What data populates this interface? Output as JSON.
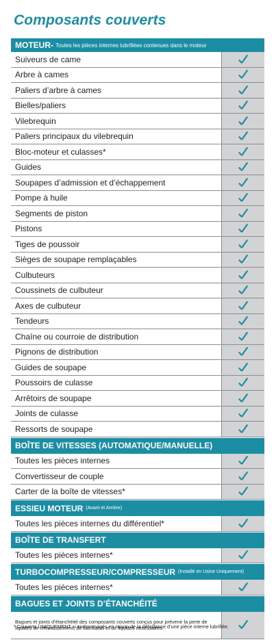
{
  "title": "Composants couverts",
  "sections": {
    "moteur": {
      "title": "MOTEUR-",
      "subtitle": "Toutes les pièces internes lubrifiées contenues dans le moteur",
      "items": [
        "Suiveurs de came",
        "Arbre à cames",
        "Paliers d’arbre à cames",
        "Bielles/paliers",
        "Vilebrequin",
        "Paliers principaux du vilebrequin",
        "Bloc-moteur et culasses*",
        "Guides",
        "Soupapes d’admission et d’échappement",
        "Pompe à huile",
        "Segments de piston",
        "Pistons",
        "Tiges de poussoir",
        "Sièges de soupape remplaçables",
        "Culbuteurs",
        "Coussinets de culbuteur",
        "Axes de culbuteur",
        "Tendeurs",
        "Chaîne ou courroie de distribution",
        "Pignons de distribution",
        "Guides de soupape",
        "Poussoirs de culasse",
        "Arrêtoirs de soupape",
        "Joints de culasse",
        "Ressorts de soupape"
      ]
    },
    "boite_vitesses": {
      "title": "BOÎTE DE VITESSES (AUTOMATIQUE/MANUELLE)",
      "items": [
        "Toutes les pièces internes",
        "Convertisseur de couple",
        "Carter de la boîte de vitesses*"
      ]
    },
    "essieu": {
      "title": "ESSIEU MOTEUR",
      "subtitle": "(Avant et Arrière)",
      "items": [
        "Toutes les pièces internes du différentiel*"
      ]
    },
    "transfert": {
      "title": "BOÎTE DE TRANSFERT",
      "items": [
        "Toutes les pièces internes*"
      ]
    },
    "turbo": {
      "title": "TURBOCOMPRESSEUR/COMPRESSEUR",
      "subtitle": "(Installé en Usine Uniquement)",
      "items": [
        "Toutes les pièces internes*"
      ]
    },
    "bagues": {
      "title": "BAGUES ET JOINTS D’ÉTANCHÉITÉ",
      "items": [
        "Bagues et joints d’étanchéité des composants couverts conçus pour prévenir la perte de liquides de refroidissement, de lubrifiants et de liquides nécessaires"
      ]
    }
  },
  "footnote": "* Couverts UNIQUEMENT si endommagés en raison de la défaillance d’une pièce interne lubrifiée.",
  "colors": {
    "accent": "#1b8ea3",
    "check_bg": "#d1d3d4",
    "check": "#1b8ea3"
  },
  "icons": {
    "check": "checkmark-icon"
  }
}
